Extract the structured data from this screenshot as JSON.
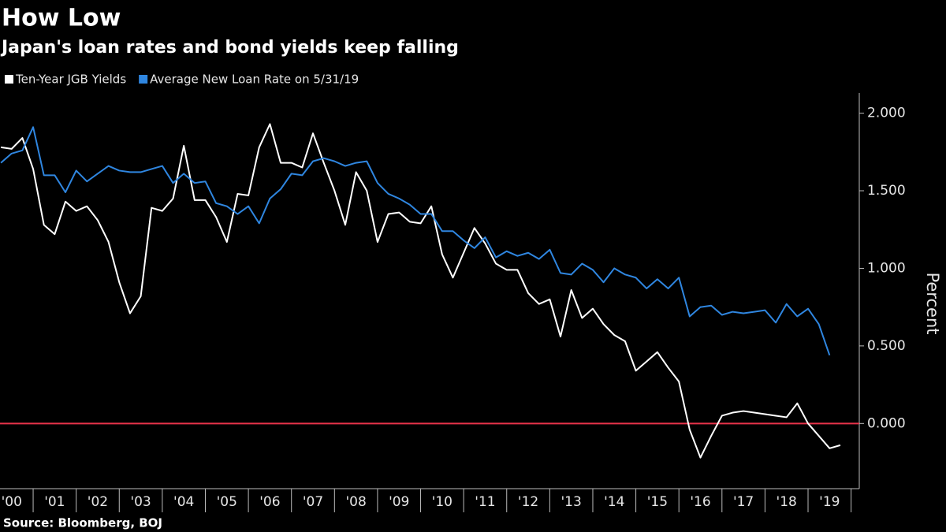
{
  "chart_data": {
    "type": "line",
    "title": "How Low",
    "subtitle": "Japan's loan rates and bond yields keep falling",
    "y_axis_label": "Percent",
    "source": "Source: Bloomberg, BOJ",
    "x": [
      2000.25,
      2000.5,
      2000.75,
      2001,
      2001.25,
      2001.5,
      2001.75,
      2002,
      2002.25,
      2002.5,
      2002.75,
      2003,
      2003.25,
      2003.5,
      2003.75,
      2004,
      2004.25,
      2004.5,
      2004.75,
      2005,
      2005.25,
      2005.5,
      2005.75,
      2006,
      2006.25,
      2006.5,
      2006.75,
      2007,
      2007.25,
      2007.5,
      2007.75,
      2008,
      2008.25,
      2008.5,
      2008.75,
      2009,
      2009.25,
      2009.5,
      2009.75,
      2010,
      2010.25,
      2010.5,
      2010.75,
      2011,
      2011.25,
      2011.5,
      2011.75,
      2012,
      2012.25,
      2012.5,
      2012.75,
      2013,
      2013.25,
      2013.5,
      2013.75,
      2014,
      2014.25,
      2014.5,
      2014.75,
      2015,
      2015.25,
      2015.5,
      2015.75,
      2016,
      2016.25,
      2016.5,
      2016.75,
      2017,
      2017.25,
      2017.5,
      2017.75,
      2018,
      2018.25,
      2018.5,
      2018.75,
      2019,
      2019.25,
      2019.5,
      2019.75
    ],
    "series": [
      {
        "name": "Ten-Year JGB Yields",
        "color": "#ffffff",
        "values": [
          1.78,
          1.77,
          1.84,
          1.64,
          1.28,
          1.22,
          1.43,
          1.37,
          1.4,
          1.31,
          1.17,
          0.91,
          0.71,
          0.82,
          1.39,
          1.37,
          1.45,
          1.79,
          1.44,
          1.44,
          1.33,
          1.17,
          1.48,
          1.47,
          1.78,
          1.93,
          1.68,
          1.68,
          1.65,
          1.87,
          1.68,
          1.5,
          1.28,
          1.62,
          1.5,
          1.17,
          1.35,
          1.36,
          1.3,
          1.29,
          1.4,
          1.09,
          0.94,
          1.1,
          1.26,
          1.16,
          1.03,
          0.99,
          0.99,
          0.84,
          0.77,
          0.8,
          0.56,
          0.86,
          0.68,
          0.74,
          0.64,
          0.57,
          0.53,
          0.34,
          0.4,
          0.46,
          0.36,
          0.27,
          -0.04,
          -0.22,
          -0.08,
          0.05,
          0.07,
          0.08,
          0.07,
          0.06,
          0.05,
          0.04,
          0.13,
          0.0,
          -0.08,
          -0.16,
          -0.14
        ]
      },
      {
        "name": "Average New Loan Rate on 5/31/19",
        "color": "#2f86e0",
        "values": [
          1.68,
          1.74,
          1.76,
          1.91,
          1.6,
          1.6,
          1.49,
          1.63,
          1.56,
          1.61,
          1.66,
          1.63,
          1.62,
          1.62,
          1.64,
          1.66,
          1.55,
          1.61,
          1.55,
          1.56,
          1.42,
          1.4,
          1.35,
          1.4,
          1.29,
          1.45,
          1.51,
          1.61,
          1.6,
          1.69,
          1.71,
          1.69,
          1.66,
          1.68,
          1.69,
          1.55,
          1.48,
          1.45,
          1.41,
          1.35,
          1.35,
          1.24,
          1.24,
          1.18,
          1.13,
          1.2,
          1.07,
          1.11,
          1.08,
          1.1,
          1.06,
          1.12,
          0.97,
          0.96,
          1.03,
          0.99,
          0.91,
          1.0,
          0.96,
          0.94,
          0.87,
          0.93,
          0.87,
          0.94,
          0.69,
          0.75,
          0.76,
          0.7,
          0.72,
          0.71,
          0.72,
          0.73,
          0.65,
          0.77,
          0.69,
          0.74,
          0.64,
          0.44,
          null
        ]
      }
    ],
    "xlim": [
      2000.23,
      2020.19
    ],
    "xticks": [
      {
        "value": 2000.5,
        "label": "'00"
      },
      {
        "value": 2001.5,
        "label": "'01"
      },
      {
        "value": 2002.5,
        "label": "'02"
      },
      {
        "value": 2003.5,
        "label": "'03"
      },
      {
        "value": 2004.5,
        "label": "'04"
      },
      {
        "value": 2005.5,
        "label": "'05"
      },
      {
        "value": 2006.5,
        "label": "'06"
      },
      {
        "value": 2007.5,
        "label": "'07"
      },
      {
        "value": 2008.5,
        "label": "'08"
      },
      {
        "value": 2009.5,
        "label": "'09"
      },
      {
        "value": 2010.5,
        "label": "'10"
      },
      {
        "value": 2011.5,
        "label": "'11"
      },
      {
        "value": 2012.5,
        "label": "'12"
      },
      {
        "value": 2013.5,
        "label": "'13"
      },
      {
        "value": 2014.5,
        "label": "'14"
      },
      {
        "value": 2015.5,
        "label": "'15"
      },
      {
        "value": 2016.5,
        "label": "'16"
      },
      {
        "value": 2017.5,
        "label": "'17"
      },
      {
        "value": 2018.5,
        "label": "'18"
      },
      {
        "value": 2019.5,
        "label": "'19"
      }
    ],
    "ylim": [
      -0.42,
      2.13
    ],
    "yticks": [
      {
        "value": 2,
        "label": "2.000"
      },
      {
        "value": 1.5,
        "label": "1.500"
      },
      {
        "value": 1,
        "label": "1.000"
      },
      {
        "value": 0.5,
        "label": "0.500"
      },
      {
        "value": 0,
        "label": "0.000"
      }
    ],
    "zero_line_color": "#e8334a",
    "grid": false
  }
}
